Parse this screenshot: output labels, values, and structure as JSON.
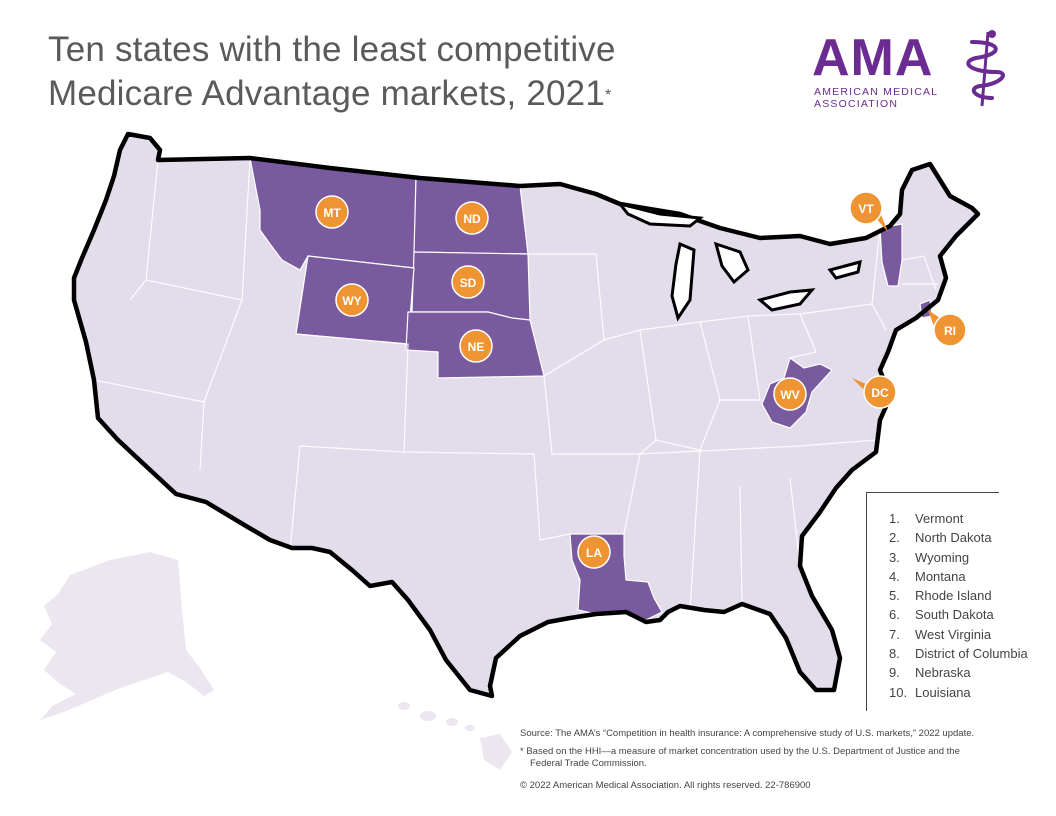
{
  "title": {
    "line1": "Ten states with the least competitive",
    "line2": "Medicare Advantage markets, 2021",
    "marker": "*"
  },
  "logo": {
    "word": "AMA",
    "sub_line1": "AMERICAN MEDICAL",
    "sub_line2": "ASSOCIATION"
  },
  "colors": {
    "highlight_state": "#7a5a9e",
    "other_state": "#e3dcea",
    "marker": "#ef9433",
    "border": "#000000",
    "state_line": "#ffffff"
  },
  "map_labels": [
    "MT",
    "ND",
    "SD",
    "WY",
    "NE",
    "VT",
    "RI",
    "WV",
    "DC",
    "LA"
  ],
  "legend": [
    {
      "num": "1.",
      "name": "Vermont"
    },
    {
      "num": "2.",
      "name": "North Dakota"
    },
    {
      "num": "3.",
      "name": "Wyoming"
    },
    {
      "num": "4.",
      "name": "Montana"
    },
    {
      "num": "5.",
      "name": "Rhode Island"
    },
    {
      "num": "6.",
      "name": "South Dakota"
    },
    {
      "num": "7.",
      "name": "West Virginia"
    },
    {
      "num": "8.",
      "name": "District of Columbia"
    },
    {
      "num": "9.",
      "name": "Nebraska"
    },
    {
      "num": "10.",
      "name": "Louisiana"
    }
  ],
  "footer": {
    "source": "Source: The AMA’s “Competition in health insurance: A comprehensive study of U.S. markets,” 2022 update.",
    "note": "* Based on the HHI—a measure of market concentration used by the U.S. Department of Justice and the Federal Trade Commission.",
    "copyright": "© 2022 American Medical Association. All rights reserved. 22-786900"
  }
}
